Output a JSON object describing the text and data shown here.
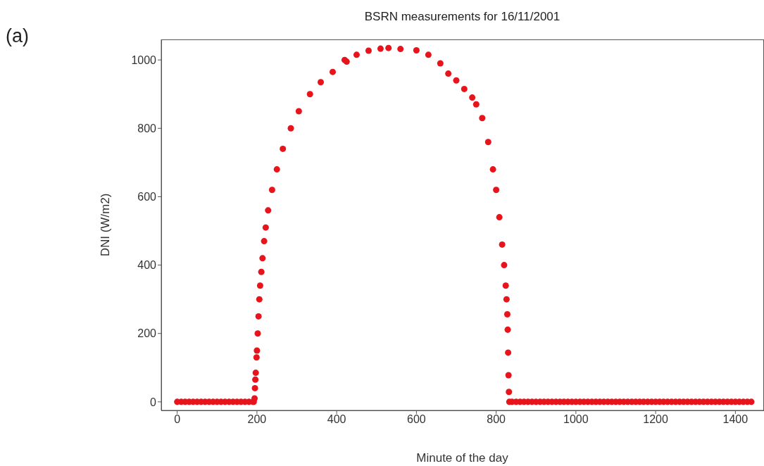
{
  "chart_data": {
    "type": "scatter",
    "title": "BSRN measurements for 16/11/2001",
    "xlabel": "Minute of the day",
    "ylabel": "DNI (W/m2)",
    "annotations": [
      "(a)"
    ],
    "x": [
      0,
      10,
      20,
      30,
      40,
      50,
      60,
      70,
      80,
      90,
      100,
      110,
      120,
      130,
      140,
      150,
      160,
      170,
      180,
      190,
      192,
      194,
      195,
      196,
      197,
      199,
      200,
      202,
      204,
      206,
      208,
      211,
      214,
      218,
      222,
      228,
      238,
      250,
      265,
      285,
      305,
      333,
      360,
      390,
      420,
      425,
      450,
      480,
      510,
      530,
      560,
      600,
      630,
      660,
      680,
      700,
      720,
      740,
      750,
      765,
      780,
      792,
      800,
      808,
      815,
      820,
      824,
      826,
      828,
      829,
      830,
      831,
      832,
      833,
      840,
      850,
      860,
      870,
      880,
      890,
      900,
      910,
      920,
      930,
      940,
      950,
      960,
      970,
      980,
      990,
      1000,
      1010,
      1020,
      1030,
      1040,
      1050,
      1060,
      1070,
      1080,
      1090,
      1100,
      1110,
      1120,
      1130,
      1140,
      1150,
      1160,
      1170,
      1180,
      1190,
      1200,
      1210,
      1220,
      1230,
      1240,
      1250,
      1260,
      1270,
      1280,
      1290,
      1300,
      1310,
      1320,
      1330,
      1340,
      1350,
      1360,
      1370,
      1380,
      1390,
      1400,
      1410,
      1420,
      1430,
      1440
    ],
    "series": [
      {
        "color": "#e8141c",
        "values": [
          0,
          0,
          0,
          0,
          0,
          0,
          0,
          0,
          0,
          0,
          0,
          0,
          0,
          0,
          0,
          0,
          0,
          0,
          0,
          0,
          0,
          10,
          40,
          65,
          85,
          130,
          150,
          200,
          250,
          300,
          340,
          380,
          420,
          470,
          510,
          560,
          620,
          680,
          740,
          800,
          850,
          900,
          935,
          965,
          1000,
          995,
          1015,
          1027,
          1033,
          1035,
          1032,
          1028,
          1015,
          990,
          960,
          940,
          915,
          890,
          870,
          830,
          760,
          680,
          620,
          540,
          460,
          400,
          340,
          300,
          256,
          211,
          144,
          78,
          29,
          0,
          0,
          0,
          0,
          0,
          0,
          0,
          0,
          0,
          0,
          0,
          0,
          0,
          0,
          0,
          0,
          0,
          0,
          0,
          0,
          0,
          0,
          0,
          0,
          0,
          0,
          0,
          0,
          0,
          0,
          0,
          0,
          0,
          0,
          0,
          0,
          0,
          0,
          0,
          0,
          0,
          0,
          0,
          0,
          0,
          0,
          0,
          0,
          0,
          0,
          0,
          0,
          0,
          0,
          0,
          0,
          0,
          0,
          0,
          0,
          0,
          0
        ]
      }
    ],
    "xlim": [
      -40,
      1470
    ],
    "ylim": [
      -25,
      1060
    ],
    "xticks": [
      0,
      200,
      400,
      600,
      800,
      1000,
      1200,
      1400
    ],
    "yticks": [
      0,
      200,
      400,
      600,
      800,
      1000
    ],
    "grid": false,
    "legend": false,
    "marker": "circle"
  }
}
